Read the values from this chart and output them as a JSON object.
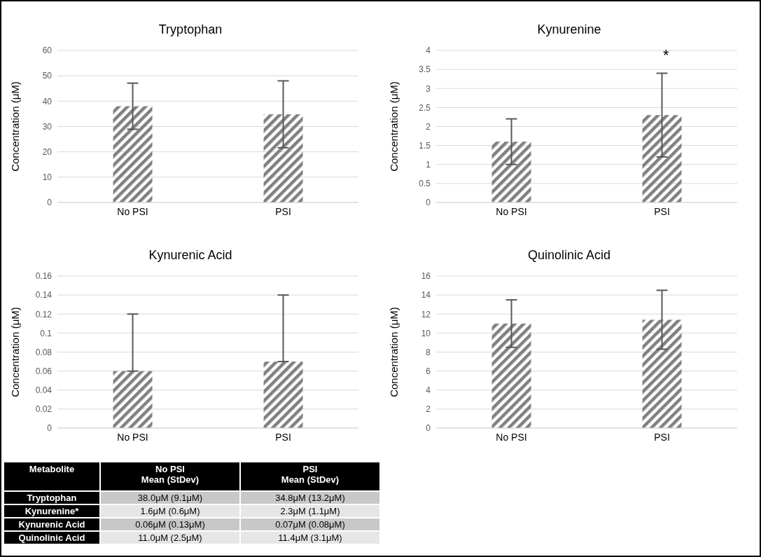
{
  "chart_data": [
    {
      "type": "bar",
      "title": "Tryptophan",
      "ylabel": "Concentration (μM)",
      "categories": [
        "No PSI",
        "PSI"
      ],
      "values": [
        38.0,
        34.8
      ],
      "errors": [
        9.1,
        13.2
      ],
      "color": "#808080",
      "ylim": [
        0,
        60
      ],
      "yticks": [
        0,
        10,
        20,
        30,
        40,
        50,
        60
      ],
      "grid": "y"
    },
    {
      "type": "bar",
      "title": "Kynurenine",
      "ylabel": "Concentration (μM)",
      "categories": [
        "No PSI",
        "PSI"
      ],
      "values": [
        1.6,
        2.3
      ],
      "errors": [
        0.6,
        1.1
      ],
      "color": "#808080",
      "ylim": [
        0,
        4
      ],
      "yticks": [
        0,
        0.5,
        1,
        1.5,
        2,
        2.5,
        3,
        3.5,
        4
      ],
      "grid": "y",
      "annotations": [
        "*"
      ]
    },
    {
      "type": "bar",
      "title": "Kynurenic Acid",
      "ylabel": "Concentration (μM)",
      "categories": [
        "No PSI",
        "PSI"
      ],
      "values": [
        0.06,
        0.07
      ],
      "errors": [
        [
          0.06,
          0.12
        ],
        [
          0.07,
          0.14
        ]
      ],
      "color": "#808080",
      "ylim": [
        0,
        0.16
      ],
      "yticks": [
        0,
        0.02,
        0.04,
        0.06,
        0.08,
        0.1,
        0.12,
        0.14,
        0.16
      ],
      "grid": "y"
    },
    {
      "type": "bar",
      "title": "Quinolinic Acid",
      "ylabel": "Concentration (μM)",
      "categories": [
        "No PSI",
        "PSI"
      ],
      "values": [
        11.0,
        11.4
      ],
      "errors": [
        2.5,
        3.1
      ],
      "color": "#808080",
      "ylim": [
        0,
        16
      ],
      "yticks": [
        0,
        2,
        4,
        6,
        8,
        10,
        12,
        14,
        16
      ],
      "grid": "y"
    },
    {
      "type": "other",
      "annotations": [
        "Metabolite",
        "No PSI\nMean (StDev)",
        "PSI\nMean (StDev)",
        "Tryptophan",
        "38.0μM (9.1μM)",
        "34.8μM (13.2μM)",
        "Kynurenine*",
        "1.6μM (0.6μM)",
        "2.3μM (1.1μM)",
        "Kynurenic Acid",
        "0.06μM (0.13μM)",
        "0.07μM (0.08μM)",
        "Quinolinic Acid",
        "11.0μM (2.5μM)",
        "11.4μM (3.1μM)"
      ]
    }
  ]
}
